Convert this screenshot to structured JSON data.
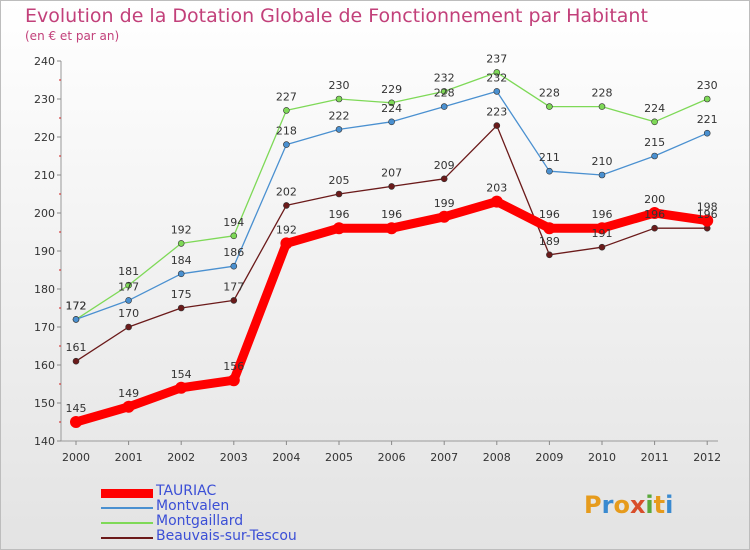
{
  "title": "Evolution de la Dotation Globale de Fonctionnement par Habitant",
  "subtitle": "(en € et par an)",
  "logo": {
    "letters": [
      "P",
      "r",
      "o",
      "x",
      "i",
      "t",
      "i"
    ],
    "colors": [
      "#e69b1c",
      "#3a8ad0",
      "#e69b1c",
      "#d84d2a",
      "#5aa83c",
      "#e69b1c",
      "#3a8ad0"
    ]
  },
  "chart_data": {
    "type": "line",
    "title": "Evolution de la Dotation Globale de Fonctionnement par Habitant",
    "subtitle": "(en € et par an)",
    "xlabel": "",
    "ylabel": "",
    "categories": [
      "2000",
      "2001",
      "2002",
      "2003",
      "2004",
      "2005",
      "2006",
      "2007",
      "2008",
      "2009",
      "2010",
      "2011",
      "2012"
    ],
    "ylim": [
      140,
      240
    ],
    "yticks": [
      140,
      150,
      160,
      170,
      180,
      190,
      200,
      210,
      220,
      230,
      240
    ],
    "grid": false,
    "series": [
      {
        "name": "TAURIAC",
        "color": "#ff0000",
        "values": [
          145,
          149,
          154,
          156,
          192,
          196,
          196,
          199,
          203,
          196,
          196,
          200,
          198
        ]
      },
      {
        "name": "Montvalen",
        "color": "#4a90d0",
        "values": [
          172,
          177,
          184,
          186,
          218,
          222,
          224,
          228,
          232,
          211,
          210,
          215,
          221
        ]
      },
      {
        "name": "Montgaillard",
        "color": "#7ed957",
        "values": [
          172,
          181,
          192,
          194,
          227,
          230,
          229,
          232,
          237,
          228,
          228,
          224,
          230
        ]
      },
      {
        "name": "Beauvais-sur-Tescou",
        "color": "#6b1a1a",
        "values": [
          161,
          170,
          175,
          177,
          202,
          205,
          207,
          209,
          223,
          189,
          191,
          196,
          196
        ]
      }
    ]
  }
}
